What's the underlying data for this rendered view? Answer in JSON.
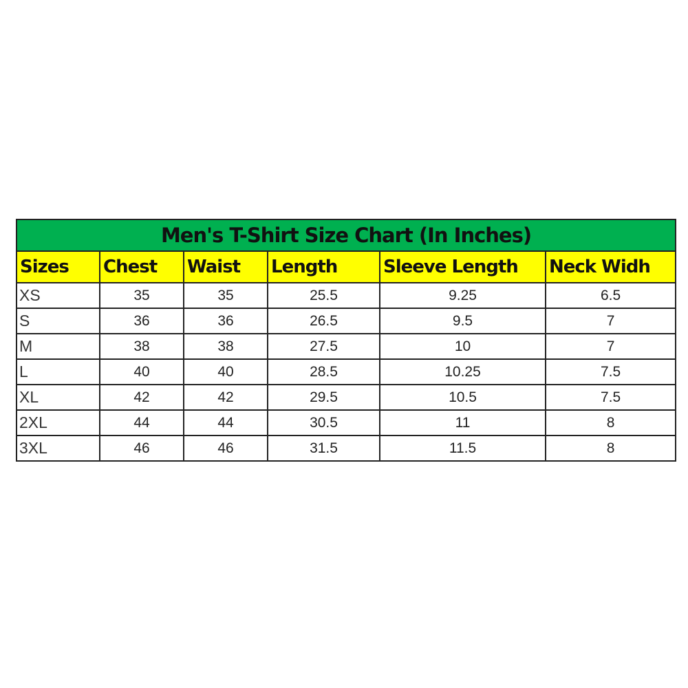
{
  "colors": {
    "title_bg": "#00b050",
    "header_bg": "#ffff00"
  },
  "table": {
    "title": "Men's T-Shirt Size Chart (In Inches)",
    "headers": [
      "Sizes",
      "Chest",
      "Waist",
      "Length",
      "Sleeve Length",
      "Neck Widh"
    ],
    "rows": [
      [
        "XS",
        "35",
        "35",
        "25.5",
        "9.25",
        "6.5"
      ],
      [
        "S",
        "36",
        "36",
        "26.5",
        "9.5",
        "7"
      ],
      [
        "M",
        "38",
        "38",
        "27.5",
        "10",
        "7"
      ],
      [
        "L",
        "40",
        "40",
        "28.5",
        "10.25",
        "7.5"
      ],
      [
        "XL",
        "42",
        "42",
        "29.5",
        "10.5",
        "7.5"
      ],
      [
        "2XL",
        "44",
        "44",
        "30.5",
        "11",
        "8"
      ],
      [
        "3XL",
        "46",
        "46",
        "31.5",
        "11.5",
        "8"
      ]
    ]
  }
}
